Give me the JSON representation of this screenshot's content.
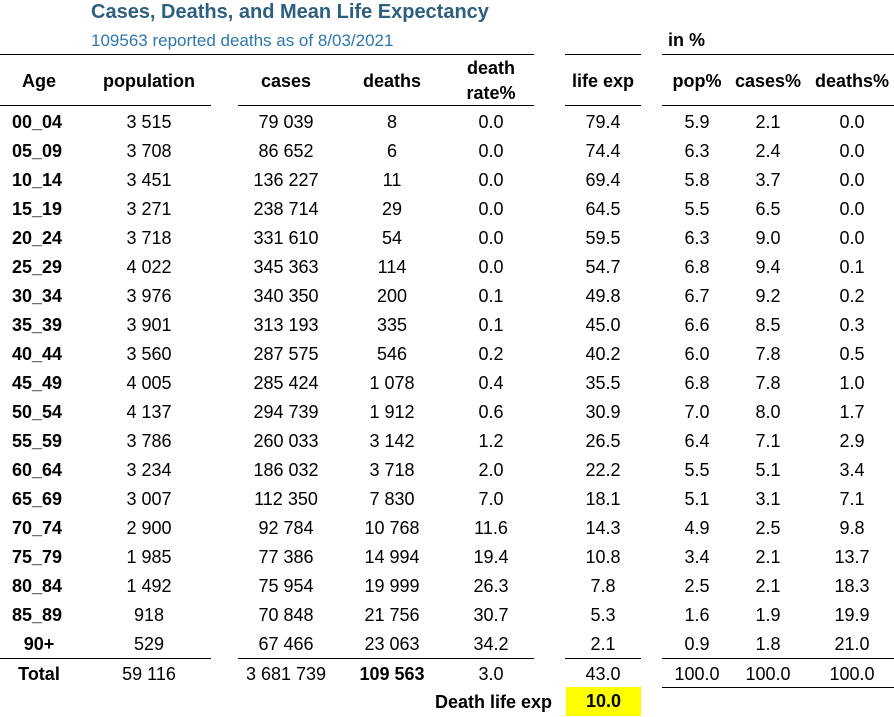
{
  "header": {
    "title": "Cases, Deaths, and Mean Life Expectancy",
    "subtitle": "109563 reported deaths as of 8/03/2021",
    "pct_group_label": "in %"
  },
  "columns": {
    "age": "Age",
    "population": "population",
    "cases": "cases",
    "deaths": "deaths",
    "death_rate_line1": "death",
    "death_rate_line2": "rate%",
    "life_exp": "life exp",
    "pop_pct": "pop%",
    "cases_pct": "cases%",
    "deaths_pct": "deaths%"
  },
  "rows": [
    {
      "age": "00_04",
      "population": "3 515",
      "cases": "79 039",
      "deaths": "8",
      "death_rate": "0.0",
      "life_exp": "79.4",
      "pop_pct": "5.9",
      "cases_pct": "2.1",
      "deaths_pct": "0.0"
    },
    {
      "age": "05_09",
      "population": "3 708",
      "cases": "86 652",
      "deaths": "6",
      "death_rate": "0.0",
      "life_exp": "74.4",
      "pop_pct": "6.3",
      "cases_pct": "2.4",
      "deaths_pct": "0.0"
    },
    {
      "age": "10_14",
      "population": "3 451",
      "cases": "136 227",
      "deaths": "11",
      "death_rate": "0.0",
      "life_exp": "69.4",
      "pop_pct": "5.8",
      "cases_pct": "3.7",
      "deaths_pct": "0.0"
    },
    {
      "age": "15_19",
      "population": "3 271",
      "cases": "238 714",
      "deaths": "29",
      "death_rate": "0.0",
      "life_exp": "64.5",
      "pop_pct": "5.5",
      "cases_pct": "6.5",
      "deaths_pct": "0.0"
    },
    {
      "age": "20_24",
      "population": "3 718",
      "cases": "331 610",
      "deaths": "54",
      "death_rate": "0.0",
      "life_exp": "59.5",
      "pop_pct": "6.3",
      "cases_pct": "9.0",
      "deaths_pct": "0.0"
    },
    {
      "age": "25_29",
      "population": "4 022",
      "cases": "345 363",
      "deaths": "114",
      "death_rate": "0.0",
      "life_exp": "54.7",
      "pop_pct": "6.8",
      "cases_pct": "9.4",
      "deaths_pct": "0.1"
    },
    {
      "age": "30_34",
      "population": "3 976",
      "cases": "340 350",
      "deaths": "200",
      "death_rate": "0.1",
      "life_exp": "49.8",
      "pop_pct": "6.7",
      "cases_pct": "9.2",
      "deaths_pct": "0.2"
    },
    {
      "age": "35_39",
      "population": "3 901",
      "cases": "313 193",
      "deaths": "335",
      "death_rate": "0.1",
      "life_exp": "45.0",
      "pop_pct": "6.6",
      "cases_pct": "8.5",
      "deaths_pct": "0.3"
    },
    {
      "age": "40_44",
      "population": "3 560",
      "cases": "287 575",
      "deaths": "546",
      "death_rate": "0.2",
      "life_exp": "40.2",
      "pop_pct": "6.0",
      "cases_pct": "7.8",
      "deaths_pct": "0.5"
    },
    {
      "age": "45_49",
      "population": "4 005",
      "cases": "285 424",
      "deaths": "1 078",
      "death_rate": "0.4",
      "life_exp": "35.5",
      "pop_pct": "6.8",
      "cases_pct": "7.8",
      "deaths_pct": "1.0"
    },
    {
      "age": "50_54",
      "population": "4 137",
      "cases": "294 739",
      "deaths": "1 912",
      "death_rate": "0.6",
      "life_exp": "30.9",
      "pop_pct": "7.0",
      "cases_pct": "8.0",
      "deaths_pct": "1.7"
    },
    {
      "age": "55_59",
      "population": "3 786",
      "cases": "260 033",
      "deaths": "3 142",
      "death_rate": "1.2",
      "life_exp": "26.5",
      "pop_pct": "6.4",
      "cases_pct": "7.1",
      "deaths_pct": "2.9"
    },
    {
      "age": "60_64",
      "population": "3 234",
      "cases": "186 032",
      "deaths": "3 718",
      "death_rate": "2.0",
      "life_exp": "22.2",
      "pop_pct": "5.5",
      "cases_pct": "5.1",
      "deaths_pct": "3.4"
    },
    {
      "age": "65_69",
      "population": "3 007",
      "cases": "112 350",
      "deaths": "7 830",
      "death_rate": "7.0",
      "life_exp": "18.1",
      "pop_pct": "5.1",
      "cases_pct": "3.1",
      "deaths_pct": "7.1"
    },
    {
      "age": "70_74",
      "population": "2 900",
      "cases": "92 784",
      "deaths": "10 768",
      "death_rate": "11.6",
      "life_exp": "14.3",
      "pop_pct": "4.9",
      "cases_pct": "2.5",
      "deaths_pct": "9.8"
    },
    {
      "age": "75_79",
      "population": "1 985",
      "cases": "77 386",
      "deaths": "14 994",
      "death_rate": "19.4",
      "life_exp": "10.8",
      "pop_pct": "3.4",
      "cases_pct": "2.1",
      "deaths_pct": "13.7"
    },
    {
      "age": "80_84",
      "population": "1 492",
      "cases": "75 954",
      "deaths": "19 999",
      "death_rate": "26.3",
      "life_exp": "7.8",
      "pop_pct": "2.5",
      "cases_pct": "2.1",
      "deaths_pct": "18.3"
    },
    {
      "age": "85_89",
      "population": "918",
      "cases": "70 848",
      "deaths": "21 756",
      "death_rate": "30.7",
      "life_exp": "5.3",
      "pop_pct": "1.6",
      "cases_pct": "1.9",
      "deaths_pct": "19.9"
    },
    {
      "age": "90+",
      "population": "529",
      "cases": "67 466",
      "deaths": "23 063",
      "death_rate": "34.2",
      "life_exp": "2.1",
      "pop_pct": "0.9",
      "cases_pct": "1.8",
      "deaths_pct": "21.0"
    }
  ],
  "total": {
    "age": "Total",
    "population": "59 116",
    "cases": "3 681 739",
    "deaths": "109 563",
    "death_rate": "3.0",
    "life_exp": "43.0",
    "pop_pct": "100.0",
    "cases_pct": "100.0",
    "deaths_pct": "100.0"
  },
  "footer": {
    "death_life_exp_label": "Death life exp",
    "death_life_exp_value": "10.0",
    "highlight_color": "#ffff00"
  },
  "colors": {
    "title": "#2f5f7f",
    "subtitle": "#2f77a8"
  }
}
